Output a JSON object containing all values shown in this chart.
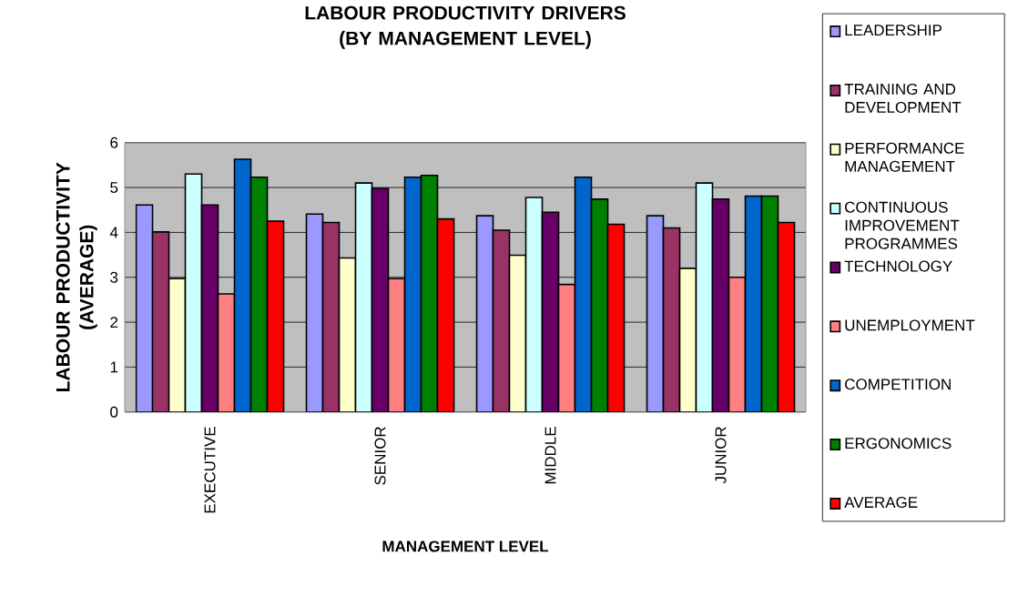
{
  "chart_data": {
    "type": "bar",
    "title": "LABOUR PRODUCTIVITY DRIVERS (BY MANAGEMENT LEVEL)",
    "xlabel": "MANAGEMENT LEVEL",
    "ylabel": "LABOUR PRODUCTIVITY (AVERAGE)",
    "categories": [
      "EXECUTIVE",
      "SENIOR",
      "MIDDLE",
      "JUNIOR"
    ],
    "series": [
      {
        "name": "LEADERSHIP",
        "color": "#9999ff",
        "values": [
          4.61,
          4.41,
          4.37,
          4.37
        ]
      },
      {
        "name": "TRAINING AND DEVELOPMENT",
        "color": "#993366",
        "values": [
          4.01,
          4.22,
          4.05,
          4.1
        ]
      },
      {
        "name": "PERFORMANCE MANAGEMENT",
        "color": "#ffffcc",
        "values": [
          2.97,
          3.43,
          3.49,
          3.2
        ]
      },
      {
        "name": "CONTINUOUS IMPROVEMENT PROGRAMMES",
        "color": "#ccffff",
        "values": [
          5.3,
          5.1,
          4.78,
          5.1
        ]
      },
      {
        "name": "TECHNOLOGY",
        "color": "#660066",
        "values": [
          4.61,
          4.98,
          4.45,
          4.74
        ]
      },
      {
        "name": "UNEMPLOYMENT",
        "color": "#ff8080",
        "values": [
          2.63,
          2.97,
          2.84,
          3.0
        ]
      },
      {
        "name": "COMPETITION",
        "color": "#0066cc",
        "values": [
          5.63,
          5.23,
          5.23,
          4.81
        ]
      },
      {
        "name": "ERGONOMICS",
        "color": "#008000",
        "values": [
          5.23,
          5.27,
          4.74,
          4.81
        ]
      },
      {
        "name": "AVERAGE",
        "color": "#ff0000",
        "values": [
          4.25,
          4.3,
          4.18,
          4.22
        ]
      }
    ],
    "ylim": [
      0,
      6
    ],
    "yticks": [
      0,
      1,
      2,
      3,
      4,
      5,
      6
    ],
    "grid": "y",
    "legend": "right"
  }
}
